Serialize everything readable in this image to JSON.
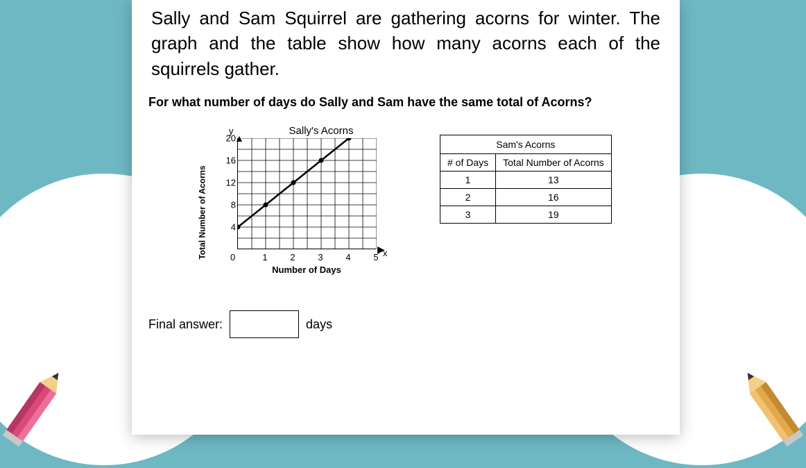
{
  "intro_text": "Sally and Sam Squirrel are gathering acorns for winter. The graph and the table show how many acorns each of the squirrels gather.",
  "question_text": "For what number of days do Sally and Sam have the same total of Acorns?",
  "chart": {
    "title": "Sally's Acorns",
    "type": "line",
    "y_label": "Total Number of Acorns",
    "x_label": "Number of Days",
    "y_axis_letter": "y",
    "x_axis_letter": "x",
    "xlim": [
      0,
      5
    ],
    "ylim": [
      0,
      20
    ],
    "x_ticks": [
      1,
      2,
      3,
      4,
      5
    ],
    "y_ticks": [
      4,
      8,
      12,
      16,
      20
    ],
    "x_minor_per_major": 2,
    "y_minor_per_major": 2,
    "line_color": "#000000",
    "line_width": 2.5,
    "marker_radius": 3.5,
    "grid_color": "#000000",
    "background_color": "#ffffff",
    "points": [
      {
        "x": 0,
        "y": 4
      },
      {
        "x": 1,
        "y": 8
      },
      {
        "x": 2,
        "y": 12
      },
      {
        "x": 3,
        "y": 16
      },
      {
        "x": 4,
        "y": 20
      }
    ]
  },
  "table": {
    "title": "Sam's Acorns",
    "columns": [
      "# of Days",
      "Total Number of Acorns"
    ],
    "rows": [
      [
        "1",
        "13"
      ],
      [
        "2",
        "16"
      ],
      [
        "3",
        "19"
      ]
    ],
    "border_color": "#000000"
  },
  "answer": {
    "label": "Final answer:",
    "unit": "days",
    "value": ""
  },
  "colors": {
    "page_bg": "#ffffff",
    "sky_bg": "#6eb8c4",
    "text": "#000000"
  }
}
